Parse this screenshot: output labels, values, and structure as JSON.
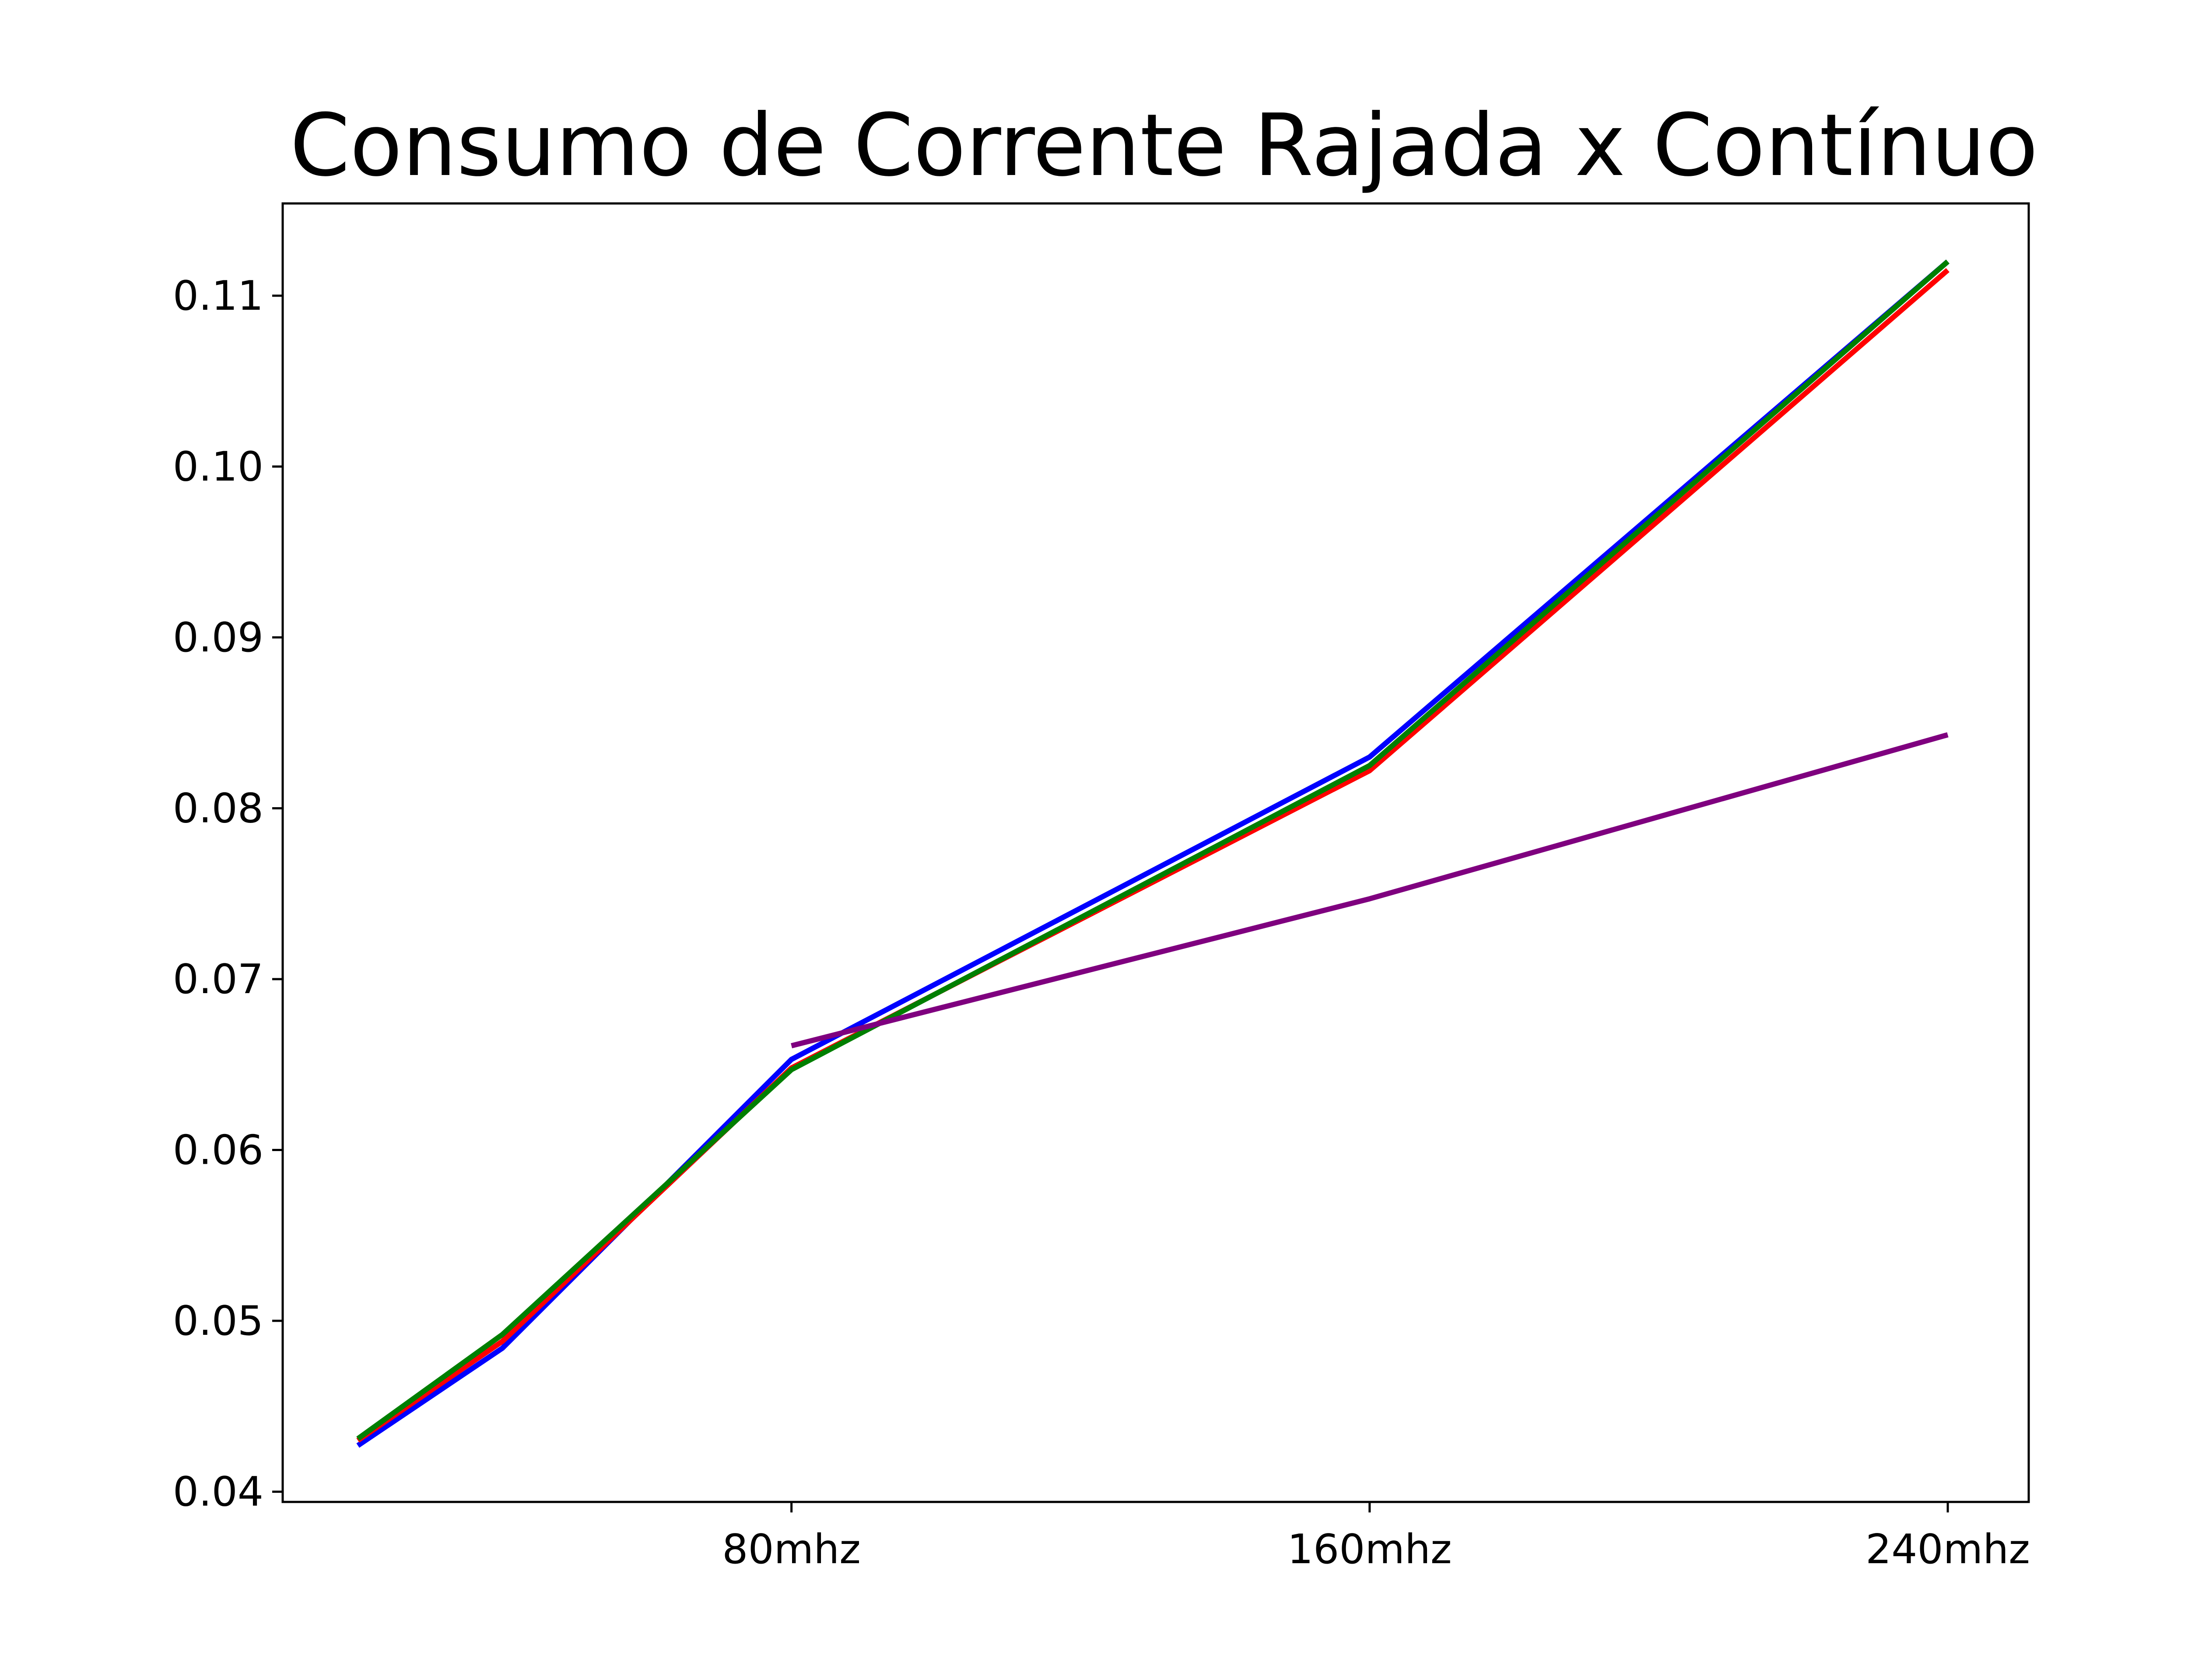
{
  "chart_data": {
    "type": "line",
    "title": "Consumo de Corrente Rajada x Contínuo",
    "xlabel": "",
    "ylabel": "",
    "x": [
      -0.75,
      -0.5,
      0,
      1,
      2
    ],
    "xlim": [
      -0.88,
      2.14
    ],
    "xticks": [
      {
        "value": 0,
        "label": "80mhz"
      },
      {
        "value": 1,
        "label": "160mhz"
      },
      {
        "value": 2,
        "label": "240mhz"
      }
    ],
    "ylim": [
      0.0394,
      0.1154
    ],
    "yticks": [
      {
        "value": 0.04,
        "label": "0.04"
      },
      {
        "value": 0.05,
        "label": "0.05"
      },
      {
        "value": 0.06,
        "label": "0.06"
      },
      {
        "value": 0.07,
        "label": "0.07"
      },
      {
        "value": 0.08,
        "label": "0.08"
      },
      {
        "value": 0.09,
        "label": "0.09"
      },
      {
        "value": 0.1,
        "label": "0.10"
      },
      {
        "value": 0.11,
        "label": "0.11"
      }
    ],
    "grid": false,
    "legend": null,
    "series": [
      {
        "color": "#0000ff",
        "x": [
          -0.75,
          -0.5,
          0,
          1,
          2
        ],
        "values": [
          0.0427,
          0.0484,
          0.0653,
          0.083,
          0.112
        ]
      },
      {
        "color": "#ff0000",
        "x": [
          -0.75,
          -0.5,
          0,
          1,
          2
        ],
        "values": [
          0.043,
          0.0488,
          0.0648,
          0.0822,
          0.1115
        ]
      },
      {
        "color": "#007f00",
        "x": [
          -0.75,
          -0.5,
          0,
          1,
          2
        ],
        "values": [
          0.0431,
          0.0492,
          0.0647,
          0.0825,
          0.112
        ]
      },
      {
        "color": "#7f007f",
        "x": [
          0,
          1,
          2
        ],
        "values": [
          0.0661,
          0.0747,
          0.0843
        ]
      }
    ]
  }
}
